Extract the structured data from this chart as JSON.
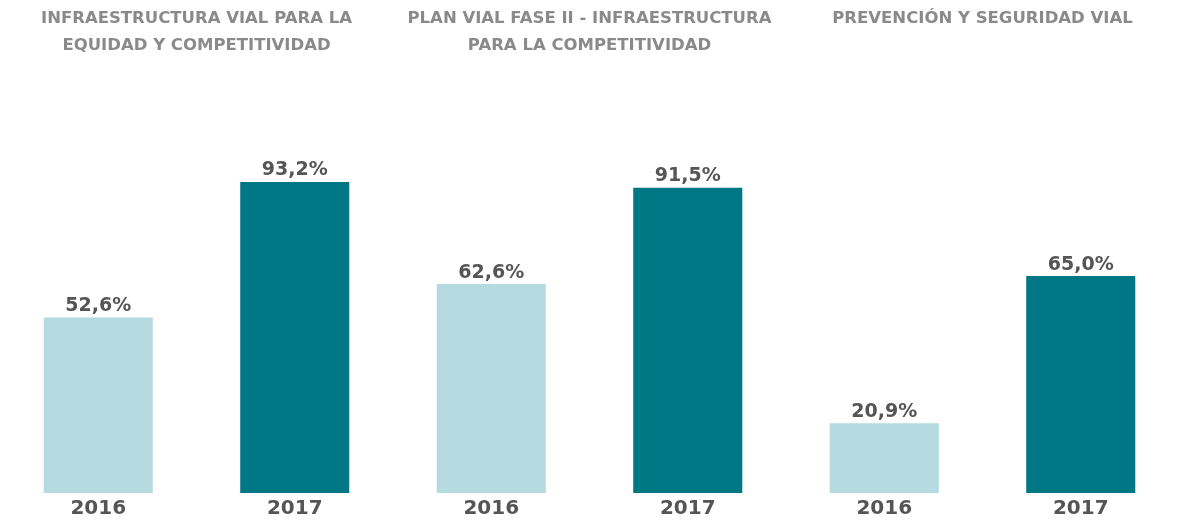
{
  "chart_data": [
    {
      "type": "bar",
      "title": "INFRAESTRUCTURA VIAL PARA LA EQUIDAD Y COMPETITIVIDAD",
      "categories": [
        "2016",
        "2017"
      ],
      "values": [
        52.6,
        93.2
      ],
      "value_labels": [
        "52,6%",
        "93,2%"
      ],
      "colors": [
        "#b5dbe0",
        "#007785"
      ],
      "tick_labels": "x",
      "grid": false,
      "legend": false
    },
    {
      "type": "bar",
      "title": "PLAN VIAL FASE II - INFRAESTRUCTURA PARA LA COMPETITIVIDAD",
      "categories": [
        "2016",
        "2017"
      ],
      "values": [
        62.6,
        91.5
      ],
      "value_labels": [
        "62,6%",
        "91,5%"
      ],
      "colors": [
        "#b5dbe0",
        "#007785"
      ],
      "tick_labels": "x",
      "grid": false,
      "legend": false
    },
    {
      "type": "bar",
      "title": "PREVENCIÓN Y SEGURIDAD VIAL",
      "categories": [
        "2016",
        "2017"
      ],
      "values": [
        20.9,
        65.0
      ],
      "value_labels": [
        "20,9%",
        "65,0%"
      ],
      "colors": [
        "#b5dbe0",
        "#007785"
      ],
      "tick_labels": "x",
      "grid": false,
      "legend": false
    }
  ]
}
